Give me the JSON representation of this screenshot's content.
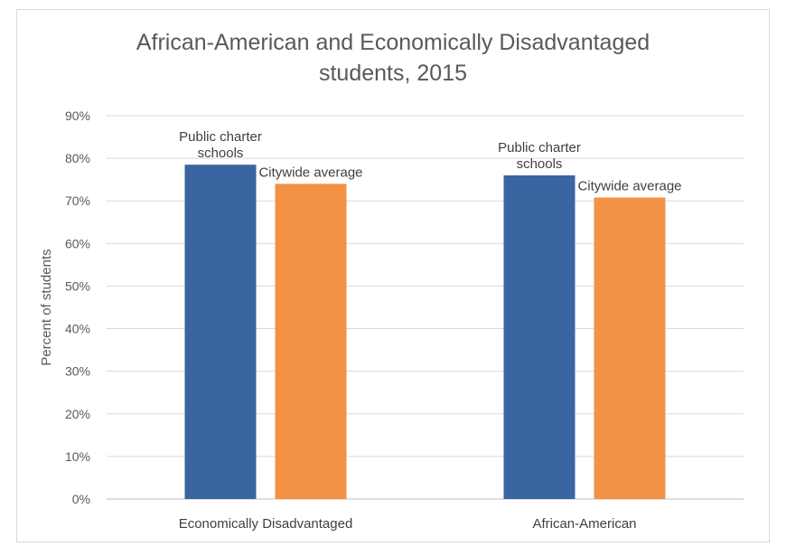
{
  "chart_data": {
    "type": "bar",
    "title_lines": [
      "African-American and Economically Disadvantaged",
      "students, 2015"
    ],
    "ylabel": "Percent of students",
    "xlabel": "",
    "ylim": [
      0,
      90
    ],
    "yticks": [
      0,
      10,
      20,
      30,
      40,
      50,
      60,
      70,
      80,
      90
    ],
    "ytick_labels": [
      "0%",
      "10%",
      "20%",
      "30%",
      "40%",
      "50%",
      "60%",
      "70%",
      "80%",
      "90%"
    ],
    "grid": true,
    "legend": "none",
    "categories": [
      "Economically Disadvantaged",
      "African-American"
    ],
    "series": [
      {
        "name": "Public charter schools",
        "color": "#3a65a0",
        "values": [
          78.5,
          76
        ],
        "labels": [
          [
            "Public charter",
            "schools"
          ],
          [
            "Public charter",
            "schools"
          ]
        ]
      },
      {
        "name": "Citywide average",
        "color": "#f39244",
        "values": [
          74,
          70.8
        ],
        "labels": [
          [
            "Citywide average"
          ],
          [
            "Citywide average"
          ]
        ]
      }
    ]
  }
}
